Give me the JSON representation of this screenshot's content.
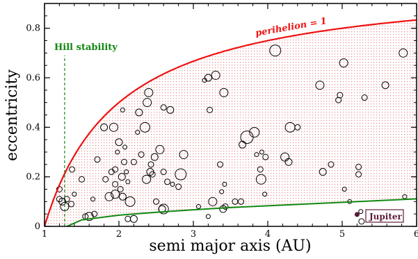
{
  "chart_data": {
    "type": "scatter",
    "xlabel": "semi major axis (AU)",
    "ylabel": "eccentricity",
    "xlim": [
      1,
      6
    ],
    "ylim": [
      0,
      0.9
    ],
    "x_ticks": [
      1,
      2,
      3,
      4,
      5,
      6
    ],
    "y_ticks": [
      0,
      0.2,
      0.4,
      0.6,
      0.8
    ],
    "minor_x_step": 0.2,
    "minor_y_step": 0.05,
    "grid": false,
    "shaded_region": {
      "between": [
        "lower_curve",
        "perihelion_curve"
      ],
      "pattern": "dotted",
      "color": "#e88a8a"
    },
    "perihelion_curve": {
      "label": "perihelion = 1",
      "color": "#ee1111",
      "formula": "e = 1 - 1/a"
    },
    "lower_curve": {
      "color": "#118811",
      "x": [
        1.3,
        1.5,
        2.0,
        2.5,
        3.0,
        3.5,
        4.0,
        4.5,
        5.0,
        5.5,
        6.0
      ],
      "y": [
        0.0,
        0.026,
        0.045,
        0.057,
        0.067,
        0.076,
        0.083,
        0.09,
        0.097,
        0.104,
        0.111
      ]
    },
    "hill_stability": {
      "label": "Hill stability",
      "x": 1.27,
      "y_range": [
        0,
        0.69
      ],
      "color": "#118811"
    },
    "jupiter": {
      "label": "Jupiter",
      "x": 5.2,
      "y": 0.048,
      "color": "#5c1a3a"
    },
    "points": [
      {
        "x": 1.2,
        "y": 0.15,
        "r": 4
      },
      {
        "x": 1.2,
        "y": 0.11,
        "r": 4
      },
      {
        "x": 1.24,
        "y": 0.1,
        "r": 5
      },
      {
        "x": 1.27,
        "y": 0.08,
        "r": 6
      },
      {
        "x": 1.3,
        "y": 0.11,
        "r": 4
      },
      {
        "x": 1.36,
        "y": 0.09,
        "r": 4
      },
      {
        "x": 1.37,
        "y": 0.23,
        "r": 4
      },
      {
        "x": 1.4,
        "y": 0.13,
        "r": 3
      },
      {
        "x": 1.5,
        "y": 0.19,
        "r": 4
      },
      {
        "x": 1.55,
        "y": 0.04,
        "r": 4
      },
      {
        "x": 1.6,
        "y": 0.04,
        "r": 6
      },
      {
        "x": 1.65,
        "y": 0.11,
        "r": 3
      },
      {
        "x": 1.67,
        "y": 0.05,
        "r": 4
      },
      {
        "x": 1.71,
        "y": 0.27,
        "r": 4
      },
      {
        "x": 1.8,
        "y": 0.4,
        "r": 5
      },
      {
        "x": 1.82,
        "y": 0.19,
        "r": 4
      },
      {
        "x": 1.87,
        "y": 0.12,
        "r": 6
      },
      {
        "x": 1.9,
        "y": 0.22,
        "r": 4
      },
      {
        "x": 1.93,
        "y": 0.4,
        "r": 6
      },
      {
        "x": 1.95,
        "y": 0.23,
        "r": 4
      },
      {
        "x": 1.95,
        "y": 0.17,
        "r": 4
      },
      {
        "x": 1.95,
        "y": 0.13,
        "r": 6
      },
      {
        "x": 1.98,
        "y": 0.3,
        "r": 3
      },
      {
        "x": 2.0,
        "y": 0.34,
        "r": 5
      },
      {
        "x": 2.02,
        "y": 0.15,
        "r": 4
      },
      {
        "x": 2.04,
        "y": 0.2,
        "r": 5
      },
      {
        "x": 2.05,
        "y": 0.12,
        "r": 5
      },
      {
        "x": 2.05,
        "y": 0.47,
        "r": 3
      },
      {
        "x": 2.07,
        "y": 0.26,
        "r": 4
      },
      {
        "x": 2.08,
        "y": 0.32,
        "r": 3
      },
      {
        "x": 2.1,
        "y": 0.22,
        "r": 3
      },
      {
        "x": 2.12,
        "y": 0.03,
        "r": 4
      },
      {
        "x": 2.12,
        "y": 0.18,
        "r": 3
      },
      {
        "x": 2.15,
        "y": 0.1,
        "r": 7
      },
      {
        "x": 2.2,
        "y": 0.26,
        "r": 4
      },
      {
        "x": 2.2,
        "y": 0.03,
        "r": 5
      },
      {
        "x": 2.25,
        "y": 0.38,
        "r": 3
      },
      {
        "x": 2.27,
        "y": 0.46,
        "r": 5
      },
      {
        "x": 2.3,
        "y": 0.29,
        "r": 4
      },
      {
        "x": 2.35,
        "y": 0.4,
        "r": 7
      },
      {
        "x": 2.37,
        "y": 0.19,
        "r": 6
      },
      {
        "x": 2.38,
        "y": 0.5,
        "r": 6
      },
      {
        "x": 2.4,
        "y": 0.54,
        "r": 6
      },
      {
        "x": 2.42,
        "y": 0.22,
        "r": 5
      },
      {
        "x": 2.43,
        "y": 0.25,
        "r": 4
      },
      {
        "x": 2.45,
        "y": 0.21,
        "r": 4
      },
      {
        "x": 2.48,
        "y": 0.28,
        "r": 5
      },
      {
        "x": 2.5,
        "y": 0.1,
        "r": 4
      },
      {
        "x": 2.55,
        "y": 0.31,
        "r": 6
      },
      {
        "x": 2.58,
        "y": 0.07,
        "r": 5
      },
      {
        "x": 2.6,
        "y": 0.07,
        "r": 7
      },
      {
        "x": 2.6,
        "y": 0.48,
        "r": 4
      },
      {
        "x": 2.6,
        "y": 0.22,
        "r": 4
      },
      {
        "x": 2.65,
        "y": 0.18,
        "r": 4
      },
      {
        "x": 2.69,
        "y": 0.47,
        "r": 5
      },
      {
        "x": 2.72,
        "y": 0.17,
        "r": 3
      },
      {
        "x": 2.8,
        "y": 0.16,
        "r": 4
      },
      {
        "x": 2.83,
        "y": 0.21,
        "r": 8
      },
      {
        "x": 2.87,
        "y": 0.29,
        "r": 6
      },
      {
        "x": 3.07,
        "y": 0.08,
        "r": 3
      },
      {
        "x": 3.15,
        "y": 0.59,
        "r": 3
      },
      {
        "x": 3.2,
        "y": 0.6,
        "r": 5
      },
      {
        "x": 3.2,
        "y": 0.04,
        "r": 3
      },
      {
        "x": 3.22,
        "y": 0.47,
        "r": 4
      },
      {
        "x": 3.26,
        "y": 0.1,
        "r": 6
      },
      {
        "x": 3.3,
        "y": 0.61,
        "r": 6
      },
      {
        "x": 3.36,
        "y": 0.25,
        "r": 4
      },
      {
        "x": 3.38,
        "y": 0.14,
        "r": 3
      },
      {
        "x": 3.4,
        "y": 0.07,
        "r": 5
      },
      {
        "x": 3.41,
        "y": 0.54,
        "r": 6
      },
      {
        "x": 3.42,
        "y": 0.17,
        "r": 3
      },
      {
        "x": 3.43,
        "y": 0.08,
        "r": 4
      },
      {
        "x": 3.56,
        "y": 0.1,
        "r": 4
      },
      {
        "x": 3.64,
        "y": 0.1,
        "r": 4
      },
      {
        "x": 3.66,
        "y": 0.33,
        "r": 5
      },
      {
        "x": 3.72,
        "y": 0.36,
        "r": 9
      },
      {
        "x": 3.82,
        "y": 0.38,
        "r": 7
      },
      {
        "x": 3.85,
        "y": 0.29,
        "r": 3
      },
      {
        "x": 3.9,
        "y": 0.23,
        "r": 4
      },
      {
        "x": 3.91,
        "y": 0.19,
        "r": 7
      },
      {
        "x": 3.92,
        "y": 0.3,
        "r": 3
      },
      {
        "x": 3.96,
        "y": 0.13,
        "r": 3
      },
      {
        "x": 3.97,
        "y": 0.28,
        "r": 4
      },
      {
        "x": 4.1,
        "y": 0.71,
        "r": 8
      },
      {
        "x": 4.23,
        "y": 0.28,
        "r": 6
      },
      {
        "x": 4.28,
        "y": 0.26,
        "r": 5
      },
      {
        "x": 4.3,
        "y": 0.4,
        "r": 7
      },
      {
        "x": 4.4,
        "y": 0.4,
        "r": 4
      },
      {
        "x": 4.7,
        "y": 0.57,
        "r": 6
      },
      {
        "x": 4.74,
        "y": 0.22,
        "r": 5
      },
      {
        "x": 4.85,
        "y": 0.25,
        "r": 4
      },
      {
        "x": 4.95,
        "y": 0.51,
        "r": 4
      },
      {
        "x": 4.97,
        "y": 0.53,
        "r": 4
      },
      {
        "x": 5.02,
        "y": 0.66,
        "r": 6
      },
      {
        "x": 5.03,
        "y": 0.15,
        "r": 3
      },
      {
        "x": 5.1,
        "y": 0.1,
        "r": 3
      },
      {
        "x": 5.22,
        "y": 0.24,
        "r": 4
      },
      {
        "x": 5.22,
        "y": 0.21,
        "r": 4
      },
      {
        "x": 5.26,
        "y": 0.02,
        "r": 4
      },
      {
        "x": 5.3,
        "y": 0.52,
        "r": 4
      },
      {
        "x": 5.58,
        "y": 0.57,
        "r": 5
      },
      {
        "x": 5.82,
        "y": 0.7,
        "r": 6
      },
      {
        "x": 5.84,
        "y": 0.12,
        "r": 3
      },
      {
        "x": 5.25,
        "y": 0.06,
        "r": 3
      }
    ]
  }
}
